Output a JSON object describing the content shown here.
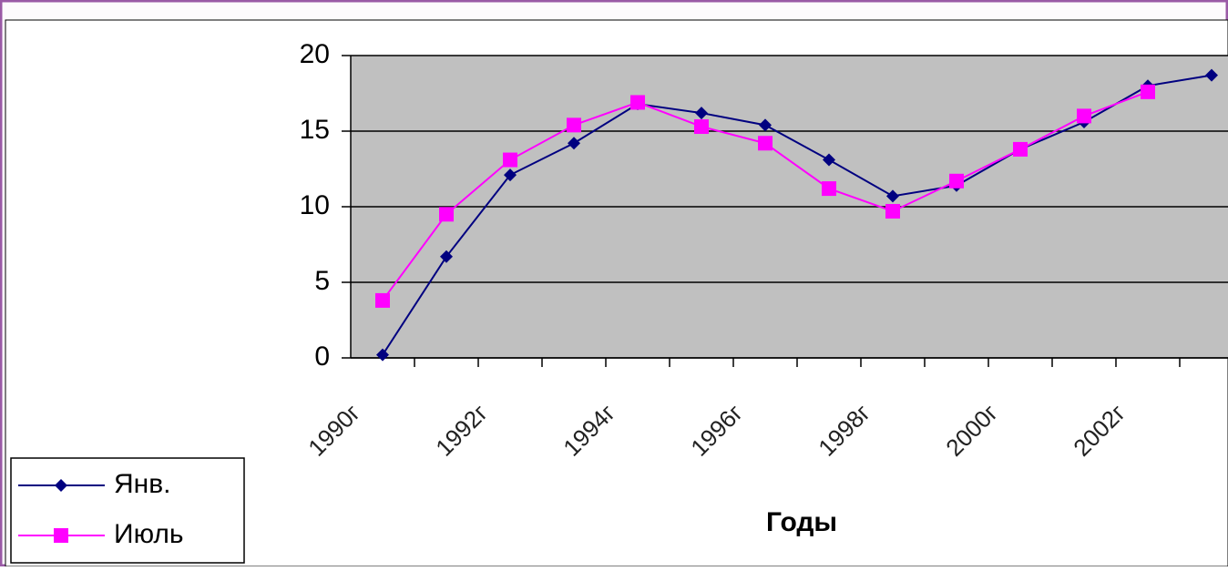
{
  "chart_data": {
    "type": "line",
    "categories": [
      "1990г",
      null,
      "1992г",
      null,
      "1994г",
      null,
      "1996г",
      null,
      "1998г",
      null,
      "2000г",
      null,
      "2002г",
      null
    ],
    "series": [
      {
        "name": "Янв.",
        "color": "#000080",
        "marker": "diamond",
        "values": [
          0.2,
          6.7,
          12.1,
          14.2,
          16.8,
          16.2,
          15.4,
          13.1,
          10.7,
          11.4,
          13.8,
          15.6,
          18.0,
          18.7
        ]
      },
      {
        "name": "Июль",
        "color": "#ff00ff",
        "marker": "square",
        "values": [
          3.8,
          9.5,
          13.1,
          15.4,
          16.9,
          15.3,
          14.2,
          11.2,
          9.7,
          11.7,
          13.8,
          16.0,
          17.6,
          null
        ]
      }
    ],
    "x_label": "Годы",
    "ylim": [
      0,
      20
    ],
    "yticks": [
      0,
      5,
      10,
      15,
      20
    ],
    "grid": true,
    "legend": "bottom-left"
  }
}
